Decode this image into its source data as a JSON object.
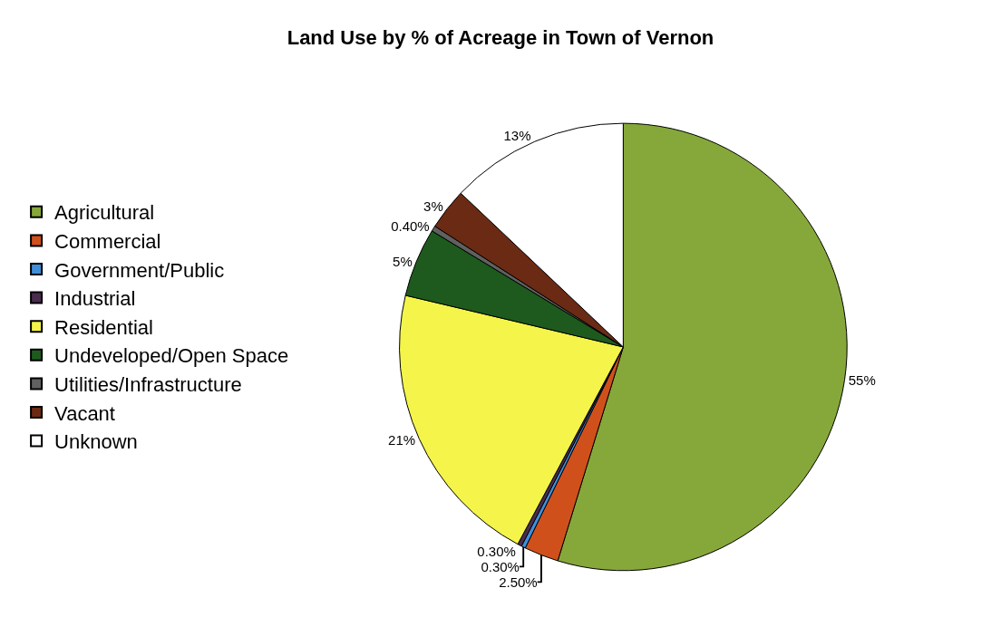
{
  "chart_data": {
    "type": "pie",
    "title": "Land Use by % of Acreage in Town of Vernon",
    "categories": [
      "Agricultural",
      "Commercial",
      "Government/Public",
      "Industrial",
      "Residential",
      "Undeveloped/Open Space",
      "Utilities/Infrastructure",
      "Vacant",
      "Unknown"
    ],
    "values": [
      55,
      2.5,
      0.3,
      0.3,
      21,
      5,
      0.4,
      3,
      13
    ],
    "value_labels": [
      "55%",
      "2.50%",
      "0.30%",
      "0.30%",
      "21%",
      "5%",
      "0.40%",
      "3%",
      "13%"
    ],
    "colors": [
      "#86a83a",
      "#d0501c",
      "#3f8ed8",
      "#4a2c4e",
      "#f4f44a",
      "#1e5a1e",
      "#606060",
      "#6b2a14",
      "#ffffff"
    ],
    "legend": "left"
  }
}
